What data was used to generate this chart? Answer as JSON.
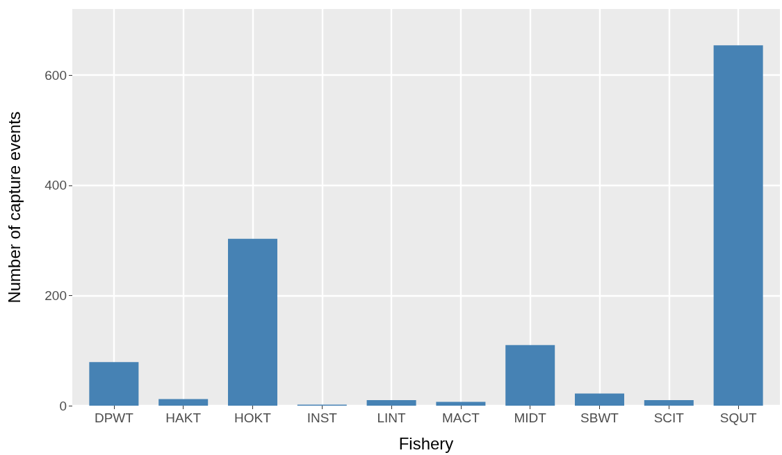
{
  "chart_data": {
    "type": "bar",
    "xlabel": "Fishery",
    "ylabel": "Number of capture events",
    "categories": [
      "DPWT",
      "HAKT",
      "HOKT",
      "INST",
      "LINT",
      "MACT",
      "MIDT",
      "SBWT",
      "SCIT",
      "SQUT"
    ],
    "values": [
      79,
      12,
      303,
      2,
      10,
      7,
      110,
      22,
      10,
      654
    ],
    "color": "#4682b4",
    "ylim": [
      0,
      720
    ],
    "yticks": [
      0,
      200,
      400,
      600
    ],
    "grid": true
  }
}
